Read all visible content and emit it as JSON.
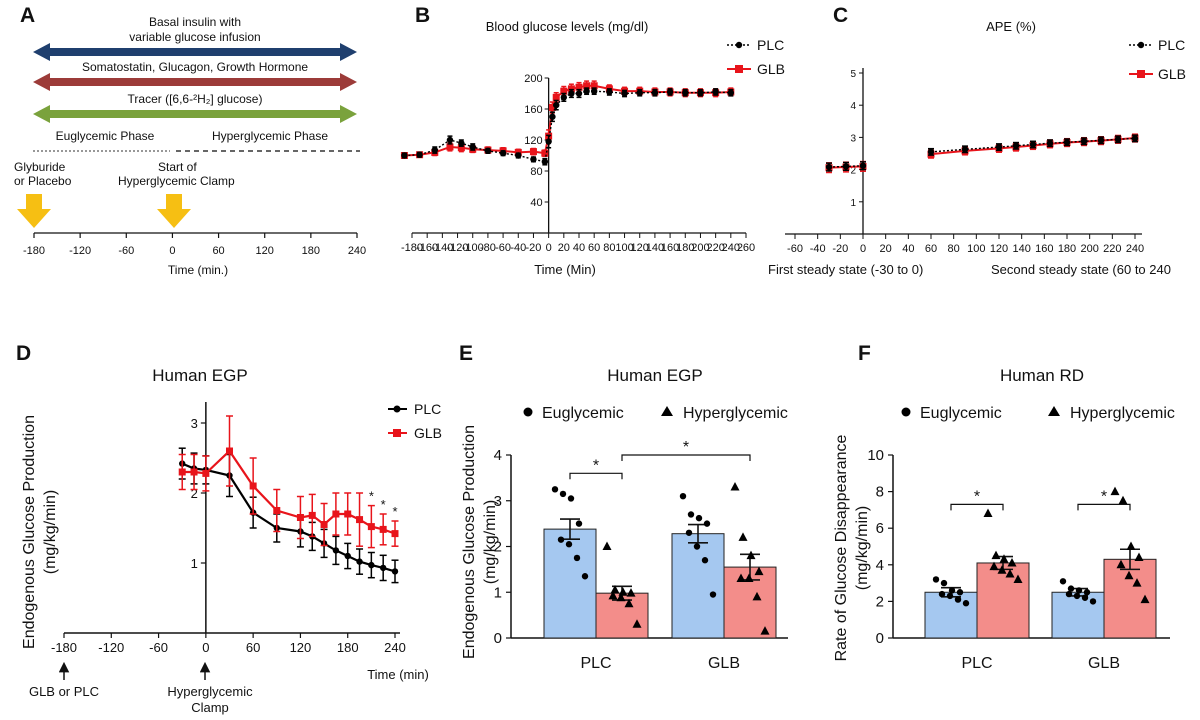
{
  "colors": {
    "plc": "#000000",
    "glb": "#e8141b",
    "blue_arrow": "#1f3f6e",
    "red_arrow": "#9c3b39",
    "green_arrow": "#7aa23c",
    "yellow": "#f6bf13",
    "bar_blue": "#a5c8f0",
    "bar_red": "#f38d8a"
  },
  "panel_a": {
    "label": "A",
    "arrows": [
      {
        "text": "Basal insulin with",
        "text2": "variable glucose infusion",
        "color": "#1f3f6e"
      },
      {
        "text": "Somatostatin, Glucagon, Growth Hormone",
        "text2": "",
        "color": "#9c3b39"
      },
      {
        "text": "Tracer ([6,6-²H₂] glucose)",
        "text2": "",
        "color": "#7aa23c"
      }
    ],
    "phase1": "Euglycemic Phase",
    "phase2": "Hyperglycemic Phase",
    "event1_line1": "Glyburide",
    "event1_line2": "or Placebo",
    "event2_line1": "Start of",
    "event2_line2": "Hyperglycemic Clamp",
    "ticks": [
      "-180",
      "-120",
      "-60",
      "0",
      "60",
      "120",
      "180",
      "240"
    ],
    "xlabel": "Time (min.)"
  },
  "chart_data": [
    {
      "panel": "B",
      "type": "line",
      "title": "Blood glucose levels (mg/dl)",
      "xlabel": "Time (Min)",
      "ylabel": "",
      "xlim": [
        -190,
        260
      ],
      "ylim": [
        0,
        200
      ],
      "x_ticks": [
        "-180",
        "-160",
        "-140",
        "-120",
        "-100",
        "-80",
        "-60",
        "-40",
        "-20",
        "0",
        "20",
        "40",
        "60",
        "80",
        "100",
        "120",
        "140",
        "160",
        "180",
        "200",
        "220",
        "240",
        "260"
      ],
      "y_ticks": [
        "40",
        "80",
        "120",
        "160",
        "200"
      ],
      "legend": [
        "PLC",
        "GLB"
      ],
      "series": [
        {
          "name": "PLC",
          "x": [
            -190,
            -170,
            -150,
            -130,
            -115,
            -100,
            -80,
            -60,
            -40,
            -20,
            -5,
            0,
            5,
            10,
            20,
            30,
            40,
            50,
            60,
            80,
            100,
            120,
            140,
            160,
            180,
            200,
            220,
            240
          ],
          "y": [
            100,
            101,
            107,
            120,
            116,
            111,
            106,
            103,
            100,
            95,
            92,
            118,
            150,
            165,
            175,
            180,
            180,
            183,
            183,
            182,
            180,
            181,
            181,
            182,
            181,
            181,
            182,
            181
          ],
          "err": [
            3,
            3,
            4,
            5,
            4,
            4,
            3,
            3,
            3,
            3,
            4,
            8,
            6,
            6,
            5,
            5,
            5,
            4,
            4,
            4,
            4,
            4,
            4,
            4,
            4,
            4,
            4,
            4
          ]
        },
        {
          "name": "GLB",
          "x": [
            -190,
            -170,
            -150,
            -130,
            -115,
            -100,
            -80,
            -60,
            -40,
            -20,
            -5,
            0,
            5,
            10,
            20,
            30,
            40,
            50,
            60,
            80,
            100,
            120,
            140,
            160,
            180,
            200,
            220,
            240
          ],
          "y": [
            100,
            101,
            104,
            111,
            110,
            108,
            107,
            106,
            104,
            105,
            103,
            125,
            162,
            175,
            183,
            186,
            188,
            190,
            190,
            186,
            183,
            183,
            182,
            182,
            181,
            181,
            181,
            182
          ],
          "err": [
            3,
            3,
            4,
            5,
            5,
            4,
            4,
            4,
            4,
            4,
            4,
            8,
            7,
            6,
            6,
            6,
            6,
            6,
            6,
            5,
            5,
            5,
            5,
            5,
            5,
            5,
            5,
            5
          ]
        }
      ]
    },
    {
      "panel": "C",
      "type": "line",
      "title": "APE (%)",
      "xlim": [
        -60,
        240
      ],
      "ylim": [
        0,
        5
      ],
      "x_ticks": [
        "-60",
        "-40",
        "-20",
        "0",
        "20",
        "40",
        "60",
        "80",
        "100",
        "120",
        "140",
        "160",
        "180",
        "200",
        "220",
        "240"
      ],
      "y_ticks": [
        "1",
        "2",
        "3",
        "4",
        "5"
      ],
      "legend": [
        "PLC",
        "GLB"
      ],
      "axis_notes": [
        "First steady state (-30 to 0)",
        "Second steady state (60 to 240"
      ],
      "series": [
        {
          "name": "PLC",
          "x": [
            -30,
            -15,
            0,
            60,
            90,
            120,
            135,
            150,
            165,
            180,
            195,
            210,
            225,
            240
          ],
          "y": [
            2.08,
            2.1,
            2.12,
            2.55,
            2.63,
            2.7,
            2.74,
            2.78,
            2.82,
            2.85,
            2.88,
            2.91,
            2.94,
            2.97
          ],
          "err": [
            0.12,
            0.12,
            0.12,
            0.1,
            0.1,
            0.1,
            0.1,
            0.1,
            0.1,
            0.1,
            0.1,
            0.1,
            0.1,
            0.1
          ]
        },
        {
          "name": "GLB",
          "x": [
            -30,
            -15,
            0,
            60,
            90,
            120,
            135,
            150,
            165,
            180,
            195,
            210,
            225,
            240
          ],
          "y": [
            2.06,
            2.08,
            2.1,
            2.48,
            2.58,
            2.66,
            2.7,
            2.75,
            2.8,
            2.84,
            2.87,
            2.9,
            2.94,
            2.98
          ],
          "err": [
            0.15,
            0.15,
            0.15,
            0.12,
            0.12,
            0.12,
            0.12,
            0.12,
            0.12,
            0.12,
            0.12,
            0.12,
            0.12,
            0.12
          ]
        }
      ]
    },
    {
      "panel": "D",
      "type": "line",
      "title": "Human EGP",
      "xlabel": "Time (min)",
      "ylabel": "Endogenous Glucose Production",
      "ylabel2": "(mg/kg/min)",
      "xlim": [
        -180,
        240
      ],
      "ylim": [
        0,
        3.3
      ],
      "x_ticks": [
        "-180",
        "-120",
        "-60",
        "0",
        "60",
        "120",
        "180",
        "240"
      ],
      "y_ticks": [
        "1",
        "2",
        "3"
      ],
      "legend": [
        "PLC",
        "GLB"
      ],
      "annotations": [
        "*",
        "*",
        "*"
      ],
      "event_labels": [
        "GLB or PLC",
        "Hyperglycemic",
        "Clamp"
      ],
      "series": [
        {
          "name": "PLC",
          "x": [
            -30,
            -15,
            0,
            30,
            60,
            90,
            120,
            135,
            150,
            165,
            180,
            195,
            210,
            225,
            240
          ],
          "y": [
            2.42,
            2.35,
            2.33,
            2.25,
            1.72,
            1.5,
            1.45,
            1.38,
            1.28,
            1.18,
            1.1,
            1.02,
            0.97,
            0.93,
            0.88
          ],
          "err": [
            0.22,
            0.22,
            0.2,
            0.3,
            0.22,
            0.2,
            0.22,
            0.2,
            0.2,
            0.2,
            0.18,
            0.18,
            0.18,
            0.18,
            0.16
          ]
        },
        {
          "name": "GLB",
          "x": [
            -30,
            -15,
            0,
            30,
            60,
            90,
            120,
            135,
            150,
            165,
            180,
            195,
            210,
            225,
            240
          ],
          "y": [
            2.3,
            2.3,
            2.28,
            2.6,
            2.1,
            1.75,
            1.65,
            1.68,
            1.55,
            1.7,
            1.7,
            1.62,
            1.52,
            1.48,
            1.42
          ],
          "err": [
            0.25,
            0.25,
            0.25,
            0.5,
            0.4,
            0.3,
            0.3,
            0.3,
            0.3,
            0.3,
            0.3,
            0.38,
            0.3,
            0.22,
            0.18
          ]
        }
      ]
    },
    {
      "panel": "E",
      "type": "bar",
      "title": "Human EGP",
      "ylabel": "Endogenous Glucose Production",
      "ylabel2": "(mg/kg/min)",
      "ylim": [
        0,
        4
      ],
      "y_ticks": [
        "0",
        "1",
        "2",
        "3",
        "4"
      ],
      "categories": [
        "PLC",
        "GLB"
      ],
      "legend": [
        "Euglycemic",
        "Hyperglycemic"
      ],
      "series": [
        {
          "name": "Euglycemic",
          "values": [
            2.38,
            2.28
          ],
          "err": [
            0.22,
            0.2
          ],
          "points": [
            [
              3.25,
              3.15,
              3.05,
              2.5,
              2.15,
              2.05,
              1.75,
              1.35
            ],
            [
              3.1,
              2.7,
              2.62,
              2.5,
              2.3,
              2.0,
              1.7,
              0.95
            ]
          ]
        },
        {
          "name": "Hyperglycemic",
          "values": [
            0.98,
            1.55
          ],
          "err": [
            0.15,
            0.28
          ],
          "points": [
            [
              2.0,
              1.05,
              1.0,
              0.98,
              0.92,
              0.88,
              0.75,
              0.3
            ],
            [
              3.3,
              2.2,
              1.8,
              1.45,
              1.3,
              1.3,
              0.9,
              0.15
            ]
          ]
        }
      ],
      "significance": [
        "*",
        "*"
      ]
    },
    {
      "panel": "F",
      "type": "bar",
      "title": "Human RD",
      "ylabel": "Rate of Glucose Disappearance",
      "ylabel2": "(mg/kg/min)",
      "ylim": [
        0,
        10
      ],
      "y_ticks": [
        "0",
        "2",
        "4",
        "6",
        "8",
        "10"
      ],
      "categories": [
        "PLC",
        "GLB"
      ],
      "legend": [
        "Euglycemic",
        "Hyperglycemic"
      ],
      "series": [
        {
          "name": "Euglycemic",
          "values": [
            2.5,
            2.5
          ],
          "err": [
            0.25,
            0.2
          ],
          "points": [
            [
              3.2,
              3.0,
              2.6,
              2.5,
              2.4,
              2.3,
              2.1,
              1.9
            ],
            [
              3.1,
              2.7,
              2.6,
              2.5,
              2.4,
              2.3,
              2.2,
              2.0
            ]
          ]
        },
        {
          "name": "Hyperglycemic",
          "values": [
            4.1,
            4.3
          ],
          "err": [
            0.35,
            0.55
          ],
          "points": [
            [
              6.8,
              4.5,
              4.3,
              4.1,
              3.9,
              3.7,
              3.5,
              3.2
            ],
            [
              8.0,
              7.5,
              5.0,
              4.4,
              4.0,
              3.4,
              3.0,
              2.1
            ]
          ]
        }
      ],
      "significance": [
        "*",
        "*"
      ]
    }
  ]
}
